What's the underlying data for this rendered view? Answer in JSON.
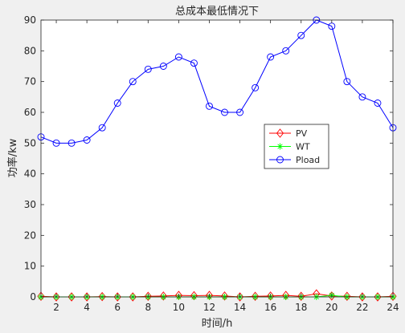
{
  "chart_data": {
    "type": "line",
    "title": "总成本最低情况下",
    "xlabel": "时间/h",
    "ylabel": "功率/kw",
    "xlim": [
      1,
      24
    ],
    "ylim": [
      0,
      90
    ],
    "xticks": [
      2,
      4,
      6,
      8,
      10,
      12,
      14,
      16,
      18,
      20,
      22,
      24
    ],
    "yticks": [
      0,
      10,
      20,
      30,
      40,
      50,
      60,
      70,
      80,
      90
    ],
    "grid": false,
    "legend_position": "center-right",
    "x": [
      1,
      2,
      3,
      4,
      5,
      6,
      7,
      8,
      9,
      10,
      11,
      12,
      13,
      14,
      15,
      16,
      17,
      18,
      19,
      20,
      21,
      22,
      23,
      24
    ],
    "series": [
      {
        "name": "PV",
        "color": "#ff0000",
        "marker": "diamond",
        "values": [
          0.2,
          0,
          0,
          0,
          0.1,
          0,
          0,
          0.2,
          0.3,
          0.5,
          0.4,
          0.5,
          0.3,
          0,
          0.2,
          0.3,
          0.5,
          0.2,
          1,
          0.3,
          0.2,
          0,
          0,
          0.2
        ]
      },
      {
        "name": "WT",
        "color": "#00ff00",
        "marker": "star",
        "values": [
          0,
          0,
          0,
          0,
          0,
          0,
          0,
          0,
          0,
          0,
          0,
          0,
          0,
          0,
          0,
          0,
          0,
          0,
          0,
          0.5,
          0,
          0,
          0,
          0
        ]
      },
      {
        "name": "Pload",
        "color": "#0000ff",
        "marker": "circle",
        "values": [
          52,
          50,
          50,
          51,
          55,
          63,
          70,
          74,
          75,
          78,
          76,
          62,
          60,
          60,
          68,
          78,
          80,
          85,
          90,
          88,
          70,
          65,
          63,
          55
        ]
      }
    ]
  }
}
